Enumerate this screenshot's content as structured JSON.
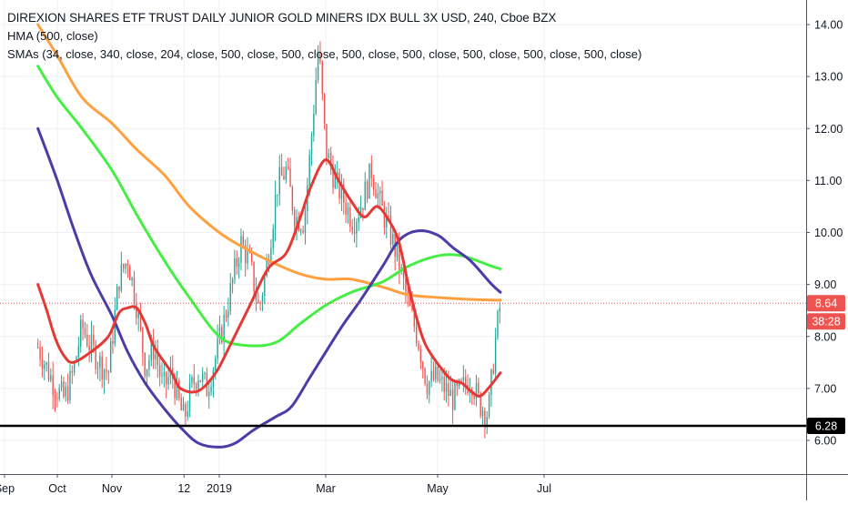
{
  "header": {
    "title": "DIREXION SHARES ETF TRUST DAILY JUNIOR GOLD MINERS IDX BULL 3X USD, 240, Cboe BZX",
    "hma_label": "HMA (500, close)",
    "smas_label": "SMAs (34, close, 340, close, 204, close, 500, close, 500, close, 500, close, 500, close, 500, close, 500, close, 500, close)"
  },
  "price_axis": {
    "ticks": [
      "14.00",
      "13.00",
      "12.00",
      "11.00",
      "10.00",
      "9.00",
      "8.00",
      "7.00",
      "6.00"
    ],
    "last_price_label": "8.64",
    "countdown_label": "38:28",
    "support_label": "6.28"
  },
  "time_axis": {
    "ticks": [
      "Oct",
      "12",
      "2019",
      "Mar",
      "May",
      "Jul",
      "Sep",
      "Nov"
    ]
  },
  "colors": {
    "up": "#26a69a",
    "down": "#ef5350",
    "hma": "#e53935",
    "sma_orange": "#ffa040",
    "sma_green": "#44ee44",
    "sma_purple": "#4b3da8",
    "support": "#000000",
    "grid": "#eef0f3",
    "axis_text": "#131722"
  },
  "chart_data": {
    "type": "line",
    "title": "DIREXION SHARES ETF TRUST DAILY JUNIOR GOLD MINERS IDX BULL 3X USD, 240, Cboe BZX",
    "ylim": [
      5.6,
      14.45
    ],
    "grid": false,
    "last_price": 8.64,
    "support_level": 6.28,
    "x_ticks": [
      "Oct",
      "12",
      "2019",
      "Mar",
      "May",
      "Jul",
      "Sep",
      "Nov"
    ],
    "price_series": {
      "name": "price",
      "x": [
        "Sep 20",
        "Sep 25",
        "Sep 30",
        "Oct 5",
        "Oct 10",
        "Oct 15",
        "Oct 20",
        "Oct 25",
        "Oct 30",
        "Nov 5",
        "Nov 10",
        "Nov 15",
        "Nov 20",
        "Nov 25",
        "Nov 30",
        "Dec 5",
        "Dec 10",
        "Dec 12",
        "Dec 16",
        "Dec 20",
        "Dec 25",
        "Dec 30",
        "Jan 3",
        "Jan 8",
        "Jan 13",
        "Jan 18",
        "Jan 23",
        "Jan 28",
        "Feb 2",
        "Feb 7",
        "Feb 12",
        "Feb 17",
        "Feb 21",
        "Feb 25",
        "Mar 1",
        "Mar 6",
        "Mar 11",
        "Mar 16",
        "Mar 21",
        "Mar 26",
        "Mar 31",
        "Apr 5",
        "Apr 10",
        "Apr 15",
        "Apr 20",
        "Apr 25",
        "Apr 30",
        "May 5",
        "May 10",
        "May 15",
        "May 20",
        "May 25",
        "May 30",
        "Jun 3",
        "Jun 6"
      ],
      "values": [
        7.8,
        7.4,
        7.0,
        6.8,
        7.3,
        8.2,
        7.8,
        7.5,
        7.3,
        9.1,
        9.5,
        8.6,
        7.4,
        7.8,
        7.0,
        7.3,
        6.6,
        6.4,
        7.0,
        7.3,
        7.0,
        7.6,
        8.2,
        9.0,
        9.8,
        9.4,
        8.5,
        9.5,
        10.9,
        11.2,
        10.3,
        10.2,
        11.8,
        13.6,
        11.6,
        11.0,
        10.6,
        10.2,
        10.6,
        11.2,
        10.5,
        10.0,
        9.4,
        8.6,
        8.0,
        7.1,
        7.2,
        7.0,
        6.8,
        7.0,
        7.2,
        6.7,
        6.5,
        7.9,
        8.64
      ]
    },
    "series": [
      {
        "name": "HMA (500, close)",
        "x": [
          "Sep 20",
          "Sep 25",
          "Sep 30",
          "Oct 5",
          "Oct 10",
          "Oct 20",
          "Oct 30",
          "Nov 5",
          "Nov 10",
          "Nov 15",
          "Nov 20",
          "Nov 25",
          "Dec 5",
          "Dec 10",
          "Dec 20",
          "Dec 30",
          "Jan 8",
          "Jan 18",
          "Jan 28",
          "Feb 7",
          "Feb 14",
          "Feb 21",
          "Mar 1",
          "Mar 8",
          "Mar 15",
          "Mar 22",
          "Mar 29",
          "Apr 5",
          "Apr 10",
          "Apr 15",
          "Apr 20",
          "Apr 25",
          "May 5",
          "May 10",
          "May 15",
          "May 20",
          "May 25",
          "May 30",
          "Jun 6"
        ],
        "values": [
          9.0,
          8.5,
          7.95,
          7.62,
          7.5,
          7.7,
          8.0,
          8.45,
          8.55,
          8.55,
          8.25,
          7.8,
          7.3,
          7.0,
          6.95,
          7.3,
          7.9,
          8.6,
          9.3,
          9.6,
          10.2,
          10.9,
          11.4,
          11.0,
          10.6,
          10.3,
          10.5,
          10.2,
          9.8,
          9.0,
          8.3,
          7.8,
          7.3,
          7.15,
          7.1,
          6.95,
          6.85,
          7.0,
          7.3
        ]
      },
      {
        "name": "SMA (34, close)",
        "x": [
          "Sep 20",
          "Oct 1",
          "Oct 10",
          "Oct 20",
          "Nov 1",
          "Nov 10",
          "Nov 20",
          "Dec 1",
          "Dec 10",
          "Dec 20",
          "Jan 1",
          "Jan 10",
          "Jan 20",
          "Feb 1",
          "Feb 10",
          "Feb 20",
          "Mar 1",
          "Mar 10",
          "Mar 20",
          "Apr 1",
          "Apr 10",
          "Apr 20",
          "May 1",
          "May 10",
          "May 20",
          "Jun 1",
          "Jun 6"
        ],
        "values": [
          12.0,
          11.0,
          10.1,
          9.2,
          8.4,
          7.7,
          7.1,
          6.6,
          6.25,
          5.95,
          5.87,
          5.95,
          6.2,
          6.45,
          6.65,
          7.2,
          7.7,
          8.2,
          8.7,
          9.35,
          9.85,
          10.03,
          9.95,
          9.7,
          9.45,
          9.0,
          8.85
        ]
      },
      {
        "name": "SMA (340, close)",
        "x": [
          "Sep 20",
          "Oct 1",
          "Oct 15",
          "Nov 1",
          "Nov 15",
          "Dec 1",
          "Dec 15",
          "Jan 1",
          "Jan 15",
          "Feb 1",
          "Feb 15",
          "Mar 1",
          "Mar 15",
          "Apr 1",
          "Apr 15",
          "May 1",
          "May 15",
          "Jun 1",
          "Jun 6"
        ],
        "values": [
          13.2,
          12.6,
          12.0,
          11.2,
          10.35,
          9.45,
          8.75,
          8.0,
          7.83,
          7.88,
          8.25,
          8.6,
          8.85,
          9.05,
          9.35,
          9.55,
          9.55,
          9.35,
          9.3
        ]
      },
      {
        "name": "SMA (204, close)",
        "x": [
          "Sep 20",
          "Oct 1",
          "Oct 15",
          "Nov 1",
          "Nov 15",
          "Dec 1",
          "Dec 15",
          "Jan 1",
          "Jan 15",
          "Feb 1",
          "Feb 15",
          "Mar 1",
          "Mar 15",
          "Apr 1",
          "Apr 15",
          "May 1",
          "May 15",
          "Jun 1",
          "Jun 6"
        ],
        "values": [
          14.0,
          13.4,
          12.6,
          12.1,
          11.6,
          11.1,
          10.5,
          10.0,
          9.7,
          9.4,
          9.2,
          9.1,
          9.1,
          8.95,
          8.8,
          8.75,
          8.72,
          8.7,
          8.7
        ]
      }
    ]
  }
}
